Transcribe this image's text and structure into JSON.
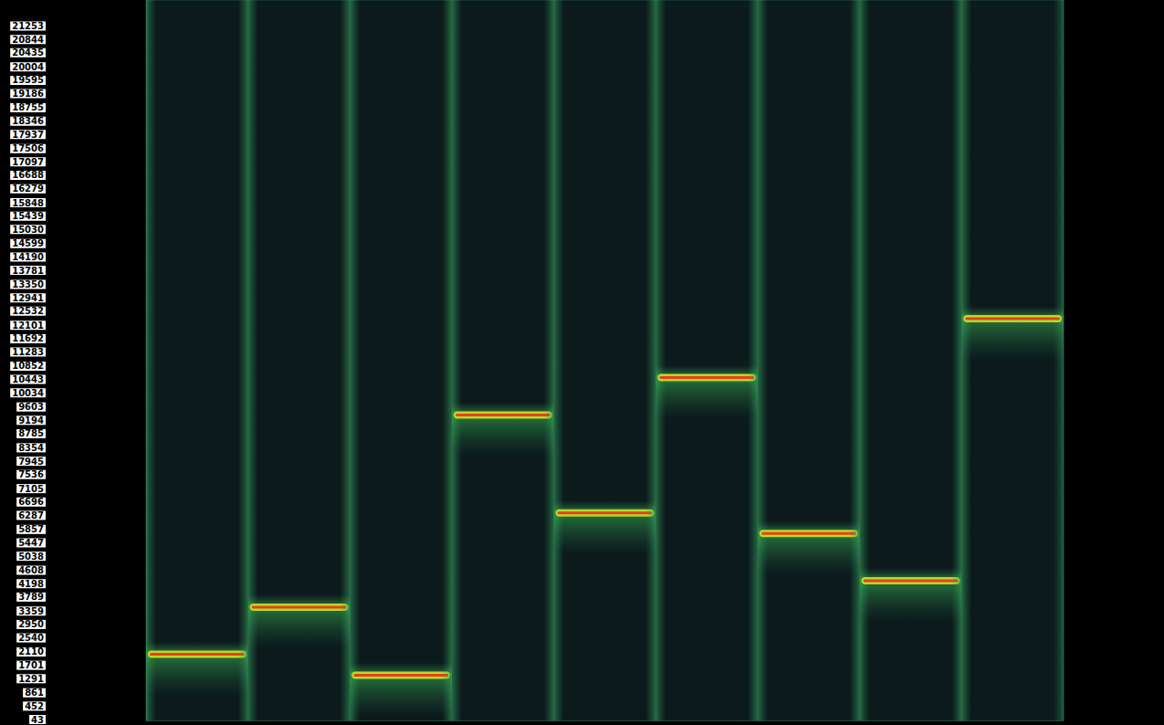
{
  "chart_data": {
    "type": "spectrogram",
    "categories": [
      null,
      null,
      null,
      null,
      null,
      null,
      null,
      null,
      null
    ],
    "values": [
      2040,
      3480,
      1400,
      9360,
      6360,
      10500,
      5730,
      4290,
      12300
    ],
    "color": "#e8401c",
    "ylim": [
      0,
      22050
    ],
    "yticks": [
      43,
      452,
      861,
      1291,
      1701,
      2110,
      2540,
      2950,
      3359,
      3789,
      4198,
      4608,
      5038,
      5447,
      5857,
      6287,
      6696,
      7105,
      7536,
      7945,
      8354,
      8785,
      9194,
      9603,
      10034,
      10443,
      10852,
      11283,
      11692,
      12101,
      12532,
      12941,
      13350,
      13781,
      14190,
      14599,
      15030,
      15439,
      15848,
      16279,
      16688,
      17097,
      17506,
      17937,
      18346,
      18755,
      19186,
      19595,
      20004,
      20435,
      20844,
      21253
    ],
    "tick_labels": "y"
  }
}
